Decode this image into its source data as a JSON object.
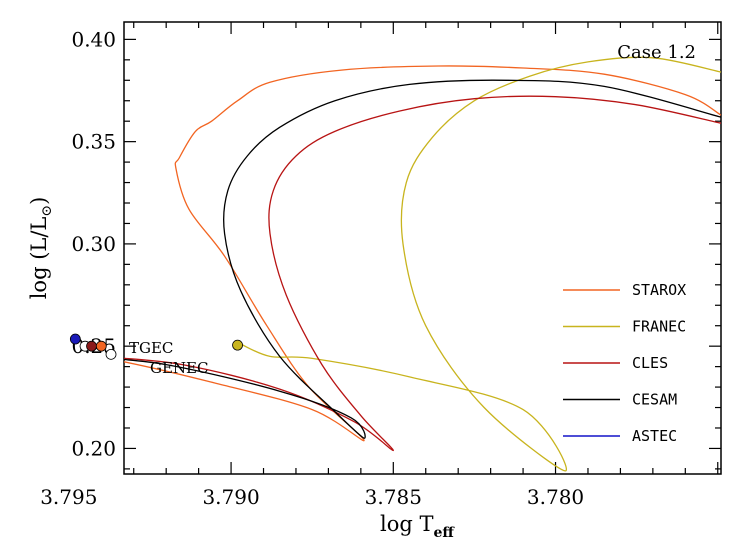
{
  "chart_data": {
    "type": "line",
    "case_label": "Case 1.2",
    "xlabel_main": "log T",
    "xlabel_sub": "eff",
    "ylabel_main": "log (L/L",
    "ylabel_sub": "⊙",
    "ylabel_close": ")",
    "xlim": [
      3.7933,
      3.7749
    ],
    "ylim": [
      0.1875,
      0.4085
    ],
    "x_ticks": [
      3.795,
      3.79,
      3.785,
      3.78
    ],
    "x_tick_labels": [
      "3.795",
      "3.790",
      "3.785",
      "3.780"
    ],
    "y_ticks": [
      0.2,
      0.25,
      0.3,
      0.35,
      0.4
    ],
    "y_tick_labels": [
      "0.20",
      "0.25",
      "0.30",
      "0.35",
      "0.40"
    ],
    "legend_position": "right",
    "series": [
      {
        "name": "STAROX",
        "color": "#f26522",
        "x": [
          3.7957,
          3.7955,
          3.7935,
          3.7905,
          3.7875,
          3.7859,
          3.7876,
          3.7889,
          3.7902,
          3.7913,
          3.7917,
          3.7916,
          3.7911,
          3.7906,
          3.7898,
          3.7888,
          3.7866,
          3.7836,
          3.781,
          3.7785,
          3.776,
          3.7749
        ],
        "y": [
          0.2465,
          0.2475,
          0.243,
          0.232,
          0.219,
          0.204,
          0.23,
          0.26,
          0.294,
          0.317,
          0.337,
          0.342,
          0.355,
          0.36,
          0.37,
          0.379,
          0.385,
          0.387,
          0.386,
          0.383,
          0.373,
          0.363
        ]
      },
      {
        "name": "FRANEC",
        "color": "#c8b41e",
        "x": [
          3.7897,
          3.7888,
          3.7875,
          3.7845,
          3.781,
          3.7797,
          3.7822,
          3.784,
          3.7847,
          3.7846,
          3.7838,
          3.7825,
          3.7808,
          3.779,
          3.777,
          3.7749
        ],
        "y": [
          0.251,
          0.245,
          0.244,
          0.235,
          0.219,
          0.189,
          0.22,
          0.26,
          0.3,
          0.33,
          0.352,
          0.37,
          0.382,
          0.389,
          0.391,
          0.384
        ]
      },
      {
        "name": "CLES",
        "color": "#b81414",
        "x": [
          3.7946,
          3.794,
          3.7915,
          3.7885,
          3.7862,
          3.785,
          3.786,
          3.7872,
          3.7883,
          3.7888,
          3.7887,
          3.788,
          3.7868,
          3.7848,
          3.7825,
          3.78,
          3.7775,
          3.7749
        ],
        "y": [
          0.2475,
          0.245,
          0.241,
          0.229,
          0.213,
          0.199,
          0.216,
          0.241,
          0.275,
          0.305,
          0.326,
          0.343,
          0.355,
          0.365,
          0.371,
          0.372,
          0.368,
          0.359
        ]
      },
      {
        "name": "CESAM",
        "color": "#000000",
        "x": [
          3.7951,
          3.7945,
          3.792,
          3.7885,
          3.7863,
          3.7859,
          3.7868,
          3.7885,
          3.7897,
          3.7902,
          3.7901,
          3.7895,
          3.7885,
          3.7868,
          3.7845,
          3.7815,
          3.7785,
          3.7749
        ],
        "y": [
          0.2475,
          0.245,
          0.241,
          0.228,
          0.215,
          0.205,
          0.218,
          0.245,
          0.277,
          0.305,
          0.326,
          0.343,
          0.357,
          0.37,
          0.378,
          0.38,
          0.377,
          0.362
        ]
      },
      {
        "name": "ASTEC",
        "color": "#1414c8",
        "x": [],
        "y": []
      }
    ],
    "markers": [
      {
        "x": 3.7948,
        "y": 0.2535,
        "color": "#1a1ab8",
        "filled": true
      },
      {
        "x": 3.7945,
        "y": 0.25,
        "color": "#ffffff",
        "filled": false
      },
      {
        "x": 3.7943,
        "y": 0.25,
        "color": "#8b1a1a",
        "filled": true
      },
      {
        "x": 3.794,
        "y": 0.25,
        "color": "#f26522",
        "filled": true
      },
      {
        "x": 3.7937,
        "y": 0.246,
        "color": "#ffffff",
        "filled": false
      },
      {
        "x": 3.7898,
        "y": 0.2505,
        "color": "#c8b41e",
        "filled": true
      }
    ],
    "annotations": [
      {
        "text": "TGEC"
      },
      {
        "text": "GENEC"
      }
    ]
  }
}
